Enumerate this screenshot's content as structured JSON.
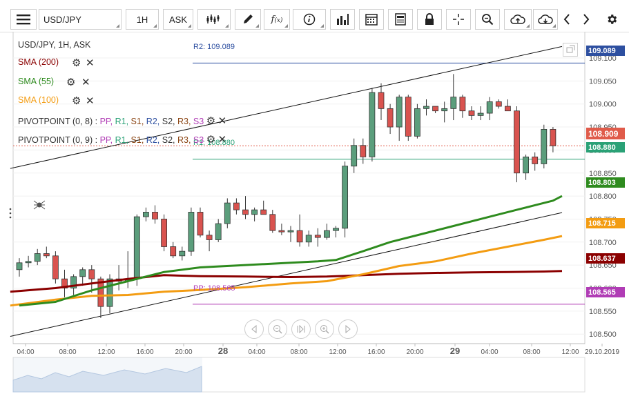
{
  "toolbar": {
    "symbol": "USD/JPY",
    "timeframe": "1H",
    "price_type": "ASK"
  },
  "legend": {
    "title": "USD/JPY, 1H, ASK",
    "sma200": "SMA (200)",
    "sma55": "SMA (55)",
    "sma100": "SMA (100)",
    "pivot1_name": "PIVOTPOINT (0, 8)",
    "pivot2_name": "PIVOTPOINT (0, 9)",
    "pivot_sep": ":",
    "pivot_levels": [
      "PP,",
      "R1,",
      "S1,",
      "R2,",
      "S2,",
      "R3,",
      "S3"
    ],
    "colors": {
      "sma200": "#8b0000",
      "sma55": "#2e8b1e",
      "sma100": "#f39c12",
      "pp": "#b03cb5",
      "r1": "#2aa176",
      "s1": "#8b4513",
      "r2": "#2d4fa0",
      "s2": "#333333",
      "r3": "#8b4513",
      "s3": "#b03cb5"
    }
  },
  "levels": {
    "r2_label": "R2: 109.089",
    "r1_label": "R1: 108.880",
    "pp_label": "PP: 108.565"
  },
  "price_boxes": {
    "r2": "109.089",
    "current": "108.909",
    "r1": "108.880",
    "sma55": "108.803",
    "sma100": "108.715",
    "sma200": "108.637",
    "pp": "108.565"
  },
  "chart_data": {
    "type": "candlestick",
    "symbol": "USD/JPY",
    "timeframe": "1H",
    "y_ticks": [
      "109.100",
      "109.050",
      "109.000",
      "108.950",
      "108.900",
      "108.850",
      "108.800",
      "108.750",
      "108.700",
      "108.650",
      "108.600",
      "108.550",
      "108.500"
    ],
    "x_ticks": [
      "04:00",
      "08:00",
      "12:00",
      "16:00",
      "20:00",
      "28",
      "04:00",
      "08:00",
      "12:00",
      "16:00",
      "20:00",
      "29",
      "04:00",
      "08:00",
      "12:00",
      "29.10.2019"
    ],
    "ylim": [
      108.47,
      109.12
    ],
    "candles": [
      {
        "o": 108.64,
        "h": 108.665,
        "l": 108.625,
        "c": 108.655
      },
      {
        "o": 108.655,
        "h": 108.67,
        "l": 108.645,
        "c": 108.658
      },
      {
        "o": 108.658,
        "h": 108.685,
        "l": 108.65,
        "c": 108.675
      },
      {
        "o": 108.675,
        "h": 108.69,
        "l": 108.665,
        "c": 108.67
      },
      {
        "o": 108.67,
        "h": 108.68,
        "l": 108.61,
        "c": 108.62
      },
      {
        "o": 108.62,
        "h": 108.64,
        "l": 108.58,
        "c": 108.6
      },
      {
        "o": 108.6,
        "h": 108.63,
        "l": 108.585,
        "c": 108.625
      },
      {
        "o": 108.625,
        "h": 108.645,
        "l": 108.605,
        "c": 108.64
      },
      {
        "o": 108.64,
        "h": 108.65,
        "l": 108.59,
        "c": 108.62
      },
      {
        "o": 108.62,
        "h": 108.625,
        "l": 108.535,
        "c": 108.56
      },
      {
        "o": 108.56,
        "h": 108.63,
        "l": 108.545,
        "c": 108.62
      },
      {
        "o": 108.62,
        "h": 108.65,
        "l": 108.595,
        "c": 108.615
      },
      {
        "o": 108.615,
        "h": 108.68,
        "l": 108.6,
        "c": 108.62
      },
      {
        "o": 108.62,
        "h": 108.76,
        "l": 108.605,
        "c": 108.755
      },
      {
        "o": 108.755,
        "h": 108.775,
        "l": 108.745,
        "c": 108.765
      },
      {
        "o": 108.765,
        "h": 108.78,
        "l": 108.74,
        "c": 108.75
      },
      {
        "o": 108.75,
        "h": 108.76,
        "l": 108.68,
        "c": 108.69
      },
      {
        "o": 108.69,
        "h": 108.7,
        "l": 108.665,
        "c": 108.67
      },
      {
        "o": 108.67,
        "h": 108.69,
        "l": 108.66,
        "c": 108.68
      },
      {
        "o": 108.68,
        "h": 108.775,
        "l": 108.67,
        "c": 108.765
      },
      {
        "o": 108.765,
        "h": 108.775,
        "l": 108.71,
        "c": 108.715
      },
      {
        "o": 108.715,
        "h": 108.725,
        "l": 108.68,
        "c": 108.705
      },
      {
        "o": 108.705,
        "h": 108.75,
        "l": 108.7,
        "c": 108.74
      },
      {
        "o": 108.74,
        "h": 108.795,
        "l": 108.73,
        "c": 108.785
      },
      {
        "o": 108.785,
        "h": 108.795,
        "l": 108.76,
        "c": 108.77
      },
      {
        "o": 108.77,
        "h": 108.8,
        "l": 108.75,
        "c": 108.76
      },
      {
        "o": 108.76,
        "h": 108.775,
        "l": 108.745,
        "c": 108.77
      },
      {
        "o": 108.77,
        "h": 108.79,
        "l": 108.76,
        "c": 108.76
      },
      {
        "o": 108.76,
        "h": 108.77,
        "l": 108.72,
        "c": 108.725
      },
      {
        "o": 108.725,
        "h": 108.74,
        "l": 108.715,
        "c": 108.722
      },
      {
        "o": 108.722,
        "h": 108.735,
        "l": 108.7,
        "c": 108.725
      },
      {
        "o": 108.725,
        "h": 108.76,
        "l": 108.69,
        "c": 108.7
      },
      {
        "o": 108.7,
        "h": 108.725,
        "l": 108.69,
        "c": 108.715
      },
      {
        "o": 108.715,
        "h": 108.73,
        "l": 108.69,
        "c": 108.71
      },
      {
        "o": 108.71,
        "h": 108.74,
        "l": 108.705,
        "c": 108.725
      },
      {
        "o": 108.725,
        "h": 108.735,
        "l": 108.71,
        "c": 108.73
      },
      {
        "o": 108.73,
        "h": 108.875,
        "l": 108.71,
        "c": 108.865
      },
      {
        "o": 108.865,
        "h": 108.925,
        "l": 108.85,
        "c": 108.91
      },
      {
        "o": 108.91,
        "h": 108.925,
        "l": 108.87,
        "c": 108.885
      },
      {
        "o": 108.885,
        "h": 109.035,
        "l": 108.875,
        "c": 109.025
      },
      {
        "o": 109.025,
        "h": 109.045,
        "l": 108.965,
        "c": 108.99
      },
      {
        "o": 108.99,
        "h": 109.0,
        "l": 108.935,
        "c": 108.95
      },
      {
        "o": 108.95,
        "h": 109.02,
        "l": 108.92,
        "c": 109.015
      },
      {
        "o": 109.015,
        "h": 109.02,
        "l": 108.92,
        "c": 108.93
      },
      {
        "o": 108.93,
        "h": 109.0,
        "l": 108.925,
        "c": 108.99
      },
      {
        "o": 108.99,
        "h": 109.01,
        "l": 108.975,
        "c": 108.995
      },
      {
        "o": 108.995,
        "h": 108.995,
        "l": 108.98,
        "c": 108.985
      },
      {
        "o": 108.985,
        "h": 109.005,
        "l": 108.96,
        "c": 108.99
      },
      {
        "o": 108.99,
        "h": 109.065,
        "l": 108.965,
        "c": 109.015
      },
      {
        "o": 109.015,
        "h": 109.02,
        "l": 108.97,
        "c": 108.985
      },
      {
        "o": 108.985,
        "h": 108.995,
        "l": 108.965,
        "c": 108.975
      },
      {
        "o": 108.975,
        "h": 108.995,
        "l": 108.965,
        "c": 108.98
      },
      {
        "o": 108.98,
        "h": 109.015,
        "l": 108.965,
        "c": 109.005
      },
      {
        "o": 109.005,
        "h": 109.01,
        "l": 108.99,
        "c": 108.995
      },
      {
        "o": 108.995,
        "h": 109.01,
        "l": 108.985,
        "c": 108.985
      },
      {
        "o": 108.985,
        "h": 108.995,
        "l": 108.83,
        "c": 108.85
      },
      {
        "o": 108.85,
        "h": 108.89,
        "l": 108.835,
        "c": 108.885
      },
      {
        "o": 108.885,
        "h": 108.895,
        "l": 108.855,
        "c": 108.87
      },
      {
        "o": 108.87,
        "h": 108.955,
        "l": 108.86,
        "c": 108.945
      },
      {
        "o": 108.945,
        "h": 108.95,
        "l": 108.895,
        "c": 108.909
      }
    ],
    "sma55": [
      [
        0,
        108.562
      ],
      [
        4,
        108.57
      ],
      [
        8,
        108.595
      ],
      [
        12,
        108.615
      ],
      [
        16,
        108.635
      ],
      [
        20,
        108.645
      ],
      [
        25,
        108.65
      ],
      [
        30,
        108.655
      ],
      [
        33,
        108.658
      ],
      [
        35,
        108.661
      ],
      [
        38,
        108.68
      ],
      [
        41,
        108.7
      ],
      [
        45,
        108.72
      ],
      [
        48,
        108.735
      ],
      [
        52,
        108.755
      ],
      [
        55,
        108.77
      ],
      [
        57,
        108.78
      ],
      [
        59,
        108.79
      ],
      [
        60,
        108.8
      ]
    ],
    "sma100": [
      [
        -1,
        108.562
      ],
      [
        4,
        108.575
      ],
      [
        8,
        108.583
      ],
      [
        12,
        108.585
      ],
      [
        16,
        108.592
      ],
      [
        20,
        108.596
      ],
      [
        25,
        108.602
      ],
      [
        30,
        108.61
      ],
      [
        34,
        108.615
      ],
      [
        38,
        108.63
      ],
      [
        42,
        108.648
      ],
      [
        46,
        108.658
      ],
      [
        50,
        108.675
      ],
      [
        54,
        108.69
      ],
      [
        58,
        108.705
      ],
      [
        60,
        108.713
      ]
    ],
    "sma200": [
      [
        -1,
        108.592
      ],
      [
        4,
        108.6
      ],
      [
        8,
        108.61
      ],
      [
        12,
        108.62
      ],
      [
        16,
        108.628
      ],
      [
        20,
        108.626
      ],
      [
        25,
        108.625
      ],
      [
        30,
        108.624
      ],
      [
        34,
        108.625
      ],
      [
        38,
        108.628
      ],
      [
        42,
        108.631
      ],
      [
        46,
        108.633
      ],
      [
        50,
        108.634
      ],
      [
        54,
        108.635
      ],
      [
        58,
        108.636
      ],
      [
        60,
        108.637
      ]
    ],
    "trendline_upper": [
      [
        -1,
        108.86
      ],
      [
        60,
        109.125
      ]
    ],
    "trendline_lower": [
      [
        -1,
        108.495
      ],
      [
        60,
        108.764
      ]
    ],
    "pivot_levels": {
      "R2": 109.089,
      "R1": 108.88,
      "PP": 108.565
    }
  }
}
